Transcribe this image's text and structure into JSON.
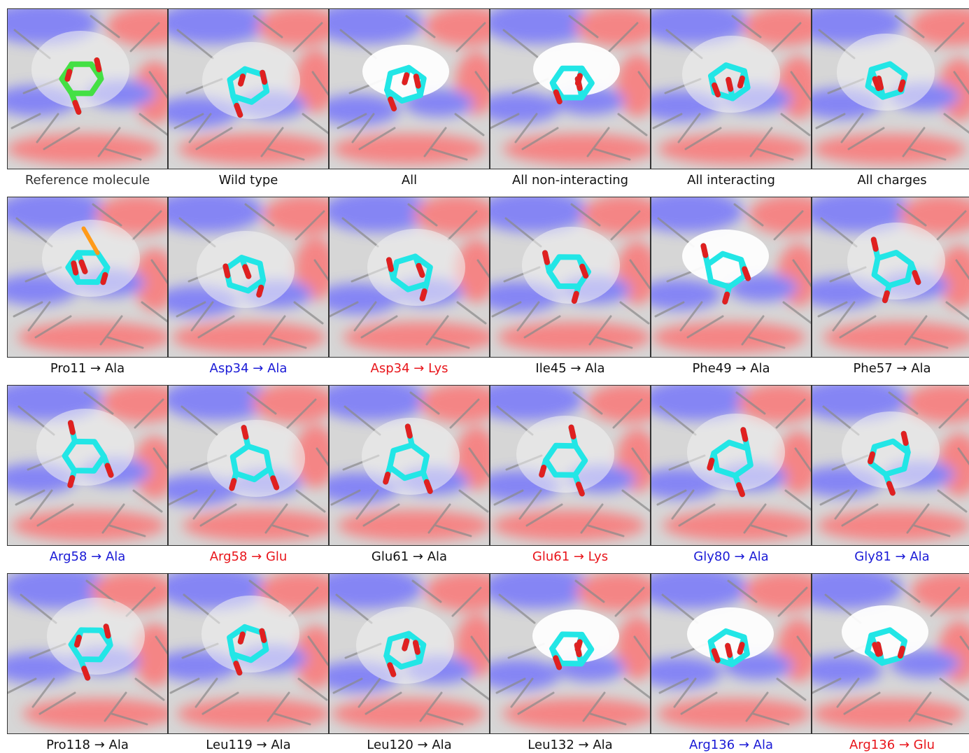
{
  "colors": {
    "neutral": "#111111",
    "gain": "#1a1ad6",
    "loss": "#e8151b",
    "reference": "#333333",
    "ligand_reference": "#44e044",
    "ligand": "#22e6e6",
    "oxygen": "#e02020",
    "surface_positive": "#6b6bff",
    "surface_negative": "#ff6b6b"
  },
  "panels": [
    {
      "label": "Reference molecule",
      "style": "reference",
      "ligand": "reference",
      "pocket": "closed"
    },
    {
      "label": "Wild type",
      "style": "neutral",
      "ligand": "standard",
      "pocket": "closed"
    },
    {
      "label": "All",
      "style": "neutral",
      "ligand": "standard",
      "pocket": "open"
    },
    {
      "label": "All non-interacting",
      "style": "neutral",
      "ligand": "standard",
      "pocket": "open"
    },
    {
      "label": "All interacting",
      "style": "neutral",
      "ligand": "standard",
      "pocket": "closed"
    },
    {
      "label": "All charges",
      "style": "neutral",
      "ligand": "standard",
      "pocket": "closed"
    },
    {
      "label": "Pro11 → Ala",
      "style": "neutral",
      "ligand": "phosphate",
      "pocket": "closed"
    },
    {
      "label": "Asp34 → Ala",
      "style": "gain",
      "ligand": "standard",
      "pocket": "closed"
    },
    {
      "label": "Asp34 → Lys",
      "style": "loss",
      "ligand": "standard",
      "pocket": "closed"
    },
    {
      "label": "Ile45 → Ala",
      "style": "neutral",
      "ligand": "standard",
      "pocket": "closed"
    },
    {
      "label": "Phe49 → Ala",
      "style": "neutral",
      "ligand": "standard",
      "pocket": "open"
    },
    {
      "label": "Phe57 → Ala",
      "style": "neutral",
      "ligand": "standard",
      "pocket": "closed"
    },
    {
      "label": "Arg58 → Ala",
      "style": "gain",
      "ligand": "standard",
      "pocket": "closed"
    },
    {
      "label": "Arg58 → Glu",
      "style": "loss",
      "ligand": "standard",
      "pocket": "closed"
    },
    {
      "label": "Glu61 → Ala",
      "style": "neutral",
      "ligand": "standard",
      "pocket": "closed"
    },
    {
      "label": "Glu61 → Lys",
      "style": "loss",
      "ligand": "standard",
      "pocket": "closed"
    },
    {
      "label": "Gly80 → Ala",
      "style": "gain",
      "ligand": "standard",
      "pocket": "closed"
    },
    {
      "label": "Gly81 → Ala",
      "style": "gain",
      "ligand": "standard",
      "pocket": "closed"
    },
    {
      "label": "Pro118 → Ala",
      "style": "neutral",
      "ligand": "standard",
      "pocket": "closed"
    },
    {
      "label": "Leu119 → Ala",
      "style": "neutral",
      "ligand": "standard",
      "pocket": "closed"
    },
    {
      "label": "Leu120 → Ala",
      "style": "neutral",
      "ligand": "standard",
      "pocket": "closed"
    },
    {
      "label": "Leu132 → Ala",
      "style": "neutral",
      "ligand": "standard",
      "pocket": "open"
    },
    {
      "label": "Arg136 → Ala",
      "style": "gain",
      "ligand": "standard",
      "pocket": "open"
    },
    {
      "label": "Arg136 → Glu",
      "style": "loss",
      "ligand": "standard",
      "pocket": "open"
    }
  ]
}
